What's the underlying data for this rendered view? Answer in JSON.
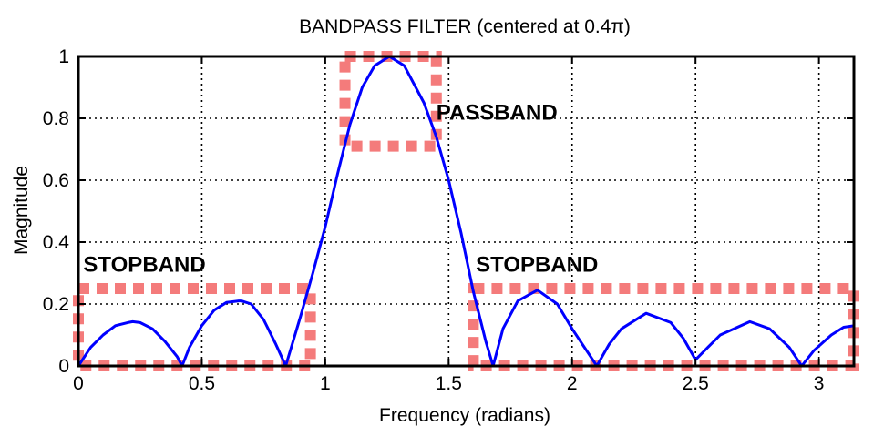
{
  "chart_data": {
    "type": "line",
    "title": "BANDPASS FILTER (centered at 0.4π)",
    "xlabel": "Frequency (radians)",
    "ylabel": "Magnitude",
    "xlim": [
      0,
      3.1416
    ],
    "ylim": [
      0,
      1
    ],
    "grid": true,
    "xticks": [
      0,
      0.5,
      1,
      1.5,
      2,
      2.5,
      3
    ],
    "xtick_labels": [
      "0",
      "0.5",
      "1",
      "1.5",
      "2",
      "2.5",
      "3"
    ],
    "yticks": [
      0,
      0.2,
      0.4,
      0.6,
      0.8,
      1
    ],
    "ytick_labels": [
      "0",
      "0.2",
      "0.4",
      "0.6",
      "0.8",
      "1"
    ],
    "series": [
      {
        "color": "#0000ff",
        "x": [
          0,
          0.05,
          0.1,
          0.15,
          0.2,
          0.22,
          0.25,
          0.3,
          0.35,
          0.4,
          0.42,
          0.45,
          0.5,
          0.55,
          0.6,
          0.65,
          0.66,
          0.7,
          0.75,
          0.8,
          0.84,
          0.9,
          0.95,
          1.0,
          1.05,
          1.1,
          1.15,
          1.2,
          1.26,
          1.32,
          1.4,
          1.45,
          1.5,
          1.55,
          1.6,
          1.65,
          1.68,
          1.72,
          1.78,
          1.86,
          1.94,
          2.0,
          2.05,
          2.1,
          2.15,
          2.2,
          2.3,
          2.4,
          2.45,
          2.5,
          2.55,
          2.6,
          2.72,
          2.8,
          2.88,
          2.93,
          2.98,
          3.05,
          3.1,
          3.1416
        ],
        "y": [
          0.0,
          0.06,
          0.1,
          0.13,
          0.14,
          0.143,
          0.14,
          0.12,
          0.08,
          0.03,
          0.0,
          0.06,
          0.13,
          0.18,
          0.205,
          0.21,
          0.21,
          0.2,
          0.15,
          0.07,
          0.0,
          0.16,
          0.3,
          0.45,
          0.62,
          0.78,
          0.9,
          0.97,
          1.0,
          0.97,
          0.85,
          0.74,
          0.6,
          0.43,
          0.24,
          0.08,
          0.0,
          0.12,
          0.21,
          0.245,
          0.2,
          0.12,
          0.06,
          0.0,
          0.07,
          0.12,
          0.17,
          0.14,
          0.09,
          0.02,
          0.06,
          0.1,
          0.143,
          0.12,
          0.06,
          0.0,
          0.05,
          0.1,
          0.125,
          0.13
        ]
      }
    ],
    "band_boxes": [
      {
        "color": "#f47b7b",
        "x": [
          0,
          0.94
        ],
        "y": [
          0,
          0.25
        ]
      },
      {
        "color": "#f47b7b",
        "x": [
          1.08,
          1.45
        ],
        "y": [
          0.71,
          1.0
        ]
      },
      {
        "color": "#f47b7b",
        "x": [
          1.6,
          3.1416
        ],
        "y": [
          0,
          0.25
        ]
      }
    ],
    "annotations": [
      {
        "text": "PASSBAND",
        "x": 1.45,
        "y": 0.795
      },
      {
        "text": "STOPBAND",
        "x": 0.02,
        "y": 0.305
      },
      {
        "text": "STOPBAND",
        "x": 1.61,
        "y": 0.305
      }
    ]
  }
}
